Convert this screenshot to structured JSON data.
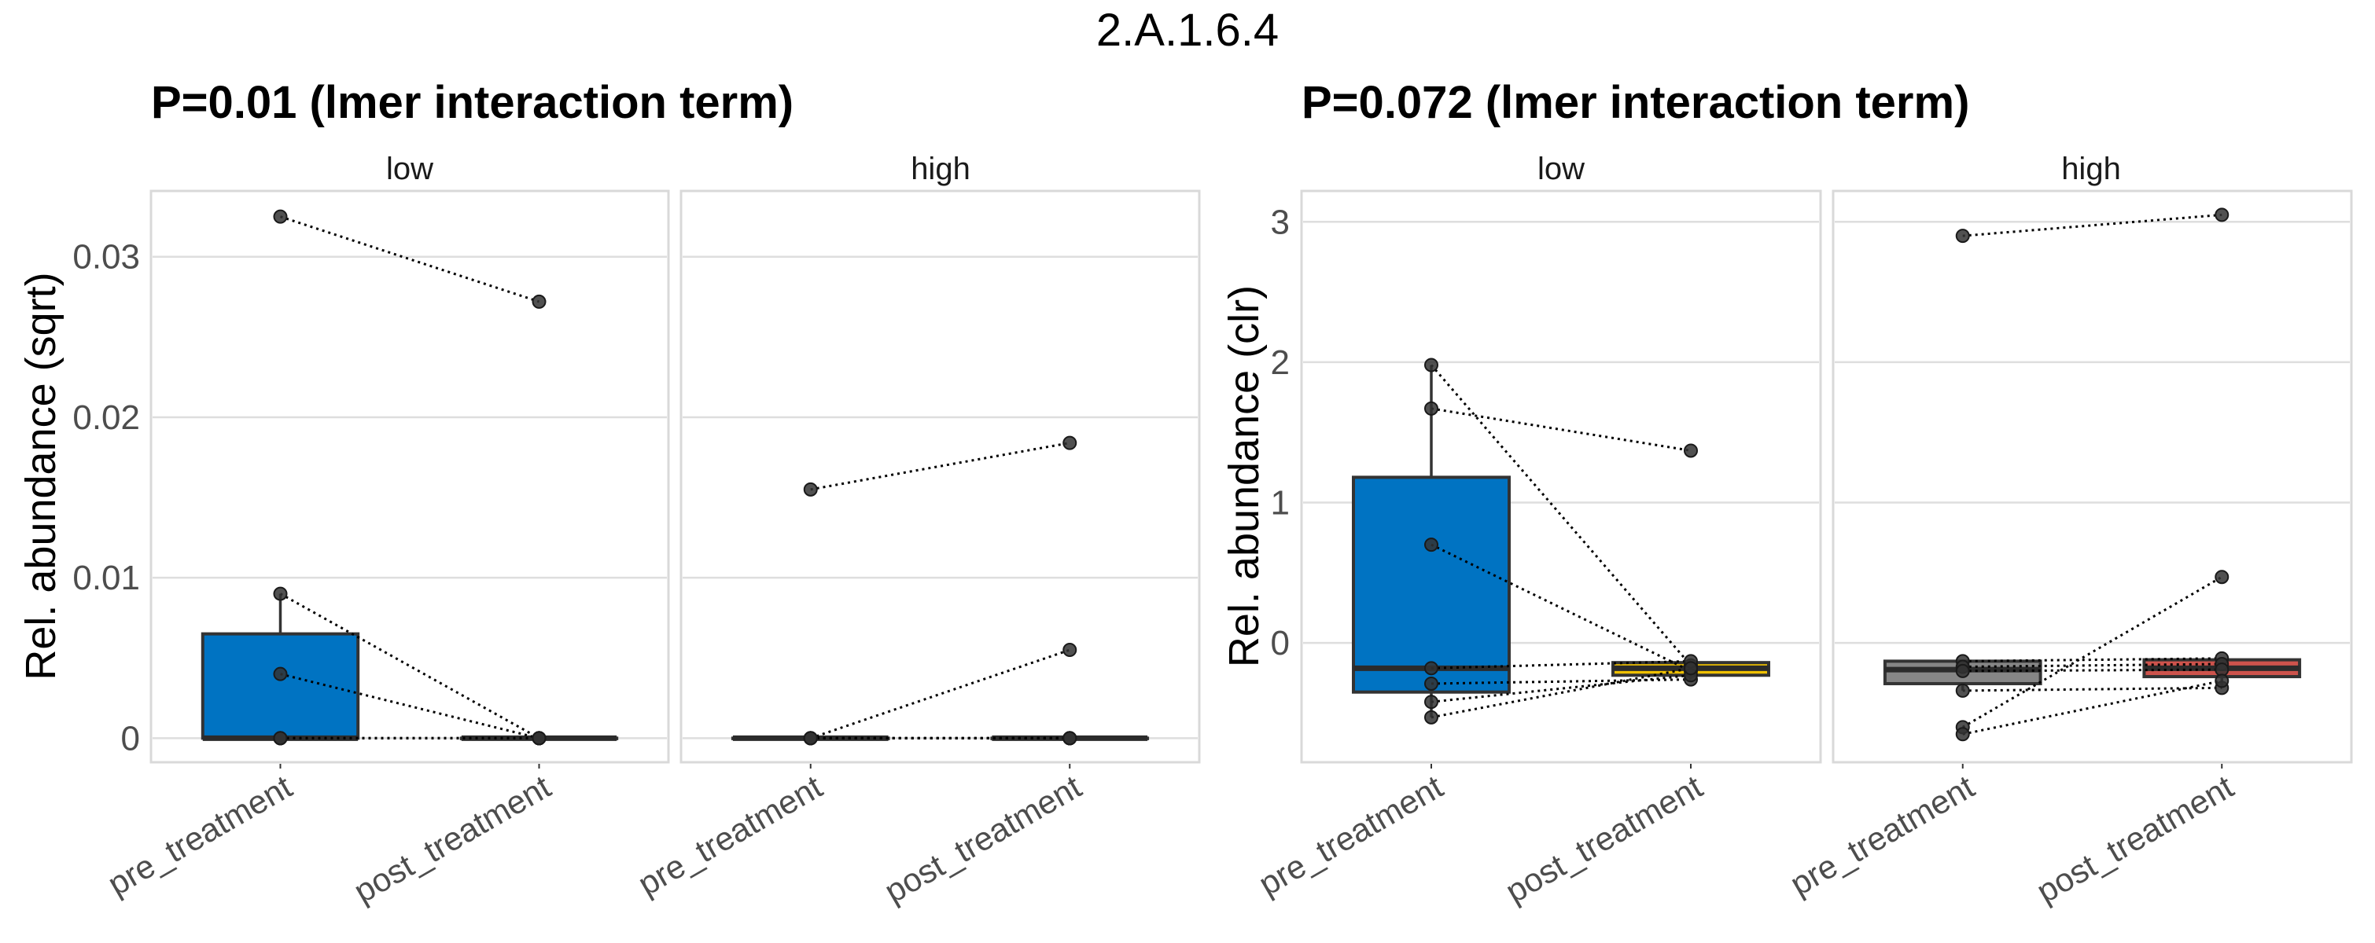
{
  "figure_title": "2.A.1.6.4",
  "chart_data": [
    {
      "type": "box",
      "title": "P=0.01 (lmer interaction term)",
      "ylabel": "Rel. abundance (sqrt)",
      "xlabel": "",
      "ylim": [
        -0.0015,
        0.0341
      ],
      "yticks": [
        0,
        0.01,
        0.02,
        0.03
      ],
      "ytick_labels": [
        "0",
        "0.01",
        "0.02",
        "0.03"
      ],
      "grid": true,
      "categories": [
        "pre_treatment",
        "post_treatment"
      ],
      "facets": [
        {
          "label": "low",
          "boxes": [
            {
              "category": "pre_treatment",
              "color": "#0073C2",
              "q1": 0,
              "median": 0,
              "q3": 0.0065,
              "whisker_low": 0,
              "whisker_high": 0.009
            },
            {
              "category": "post_treatment",
              "color": "#EFC000",
              "q1": 0,
              "median": 0,
              "q3": 0,
              "whisker_low": 0,
              "whisker_high": 0
            }
          ],
          "pairs": [
            {
              "pre": 0.0325,
              "post": 0.0272
            },
            {
              "pre": 0.009,
              "post": 0
            },
            {
              "pre": 0.004,
              "post": 0
            },
            {
              "pre": 0,
              "post": 0
            },
            {
              "pre": 0,
              "post": 0
            },
            {
              "pre": 0,
              "post": 0
            },
            {
              "pre": 0,
              "post": 0
            }
          ]
        },
        {
          "label": "high",
          "boxes": [
            {
              "category": "pre_treatment",
              "color": "#868686",
              "q1": 0,
              "median": 0,
              "q3": 0,
              "whisker_low": 0,
              "whisker_high": 0
            },
            {
              "category": "post_treatment",
              "color": "#CD534C",
              "q1": 0,
              "median": 0,
              "q3": 0,
              "whisker_low": 0,
              "whisker_high": 0
            }
          ],
          "pairs": [
            {
              "pre": 0.0155,
              "post": 0.0184
            },
            {
              "pre": 0,
              "post": 0.0055
            },
            {
              "pre": 0,
              "post": 0
            },
            {
              "pre": 0,
              "post": 0
            },
            {
              "pre": 0,
              "post": 0
            },
            {
              "pre": 0,
              "post": 0
            },
            {
              "pre": 0,
              "post": 0
            }
          ]
        }
      ]
    },
    {
      "type": "box",
      "title": "P=0.072 (lmer interaction term)",
      "ylabel": "Rel. abundance (clr)",
      "xlabel": "",
      "ylim": [
        -0.85,
        3.22
      ],
      "yticks": [
        0,
        1,
        2,
        3
      ],
      "ytick_labels": [
        "0",
        "1",
        "2",
        "3"
      ],
      "grid": true,
      "categories": [
        "pre_treatment",
        "post_treatment"
      ],
      "facets": [
        {
          "label": "low",
          "boxes": [
            {
              "category": "pre_treatment",
              "color": "#0073C2",
              "q1": -0.35,
              "median": -0.18,
              "q3": 1.18,
              "whisker_low": -0.53,
              "whisker_high": 1.98
            },
            {
              "category": "post_treatment",
              "color": "#EFC000",
              "q1": -0.23,
              "median": -0.18,
              "q3": -0.14,
              "whisker_low": -0.26,
              "whisker_high": -0.13
            }
          ],
          "pairs": [
            {
              "pre": 1.98,
              "post": -0.16
            },
            {
              "pre": 1.67,
              "post": 1.37
            },
            {
              "pre": 0.7,
              "post": -0.2
            },
            {
              "pre": -0.18,
              "post": -0.13
            },
            {
              "pre": -0.29,
              "post": -0.26
            },
            {
              "pre": -0.42,
              "post": -0.23
            },
            {
              "pre": -0.53,
              "post": -0.18
            }
          ]
        },
        {
          "label": "high",
          "boxes": [
            {
              "category": "pre_treatment",
              "color": "#868686",
              "q1": -0.29,
              "median": -0.19,
              "q3": -0.13,
              "whisker_low": -0.34,
              "whisker_high": -0.13
            },
            {
              "category": "post_treatment",
              "color": "#CD534C",
              "q1": -0.24,
              "median": -0.18,
              "q3": -0.12,
              "whisker_low": -0.32,
              "whisker_high": -0.11
            }
          ],
          "pairs": [
            {
              "pre": 2.9,
              "post": 3.05
            },
            {
              "pre": -0.6,
              "post": 0.47
            },
            {
              "pre": -0.13,
              "post": -0.11
            },
            {
              "pre": -0.17,
              "post": -0.15
            },
            {
              "pre": -0.2,
              "post": -0.19
            },
            {
              "pre": -0.34,
              "post": -0.32
            },
            {
              "pre": -0.65,
              "post": -0.27
            }
          ]
        }
      ]
    }
  ]
}
